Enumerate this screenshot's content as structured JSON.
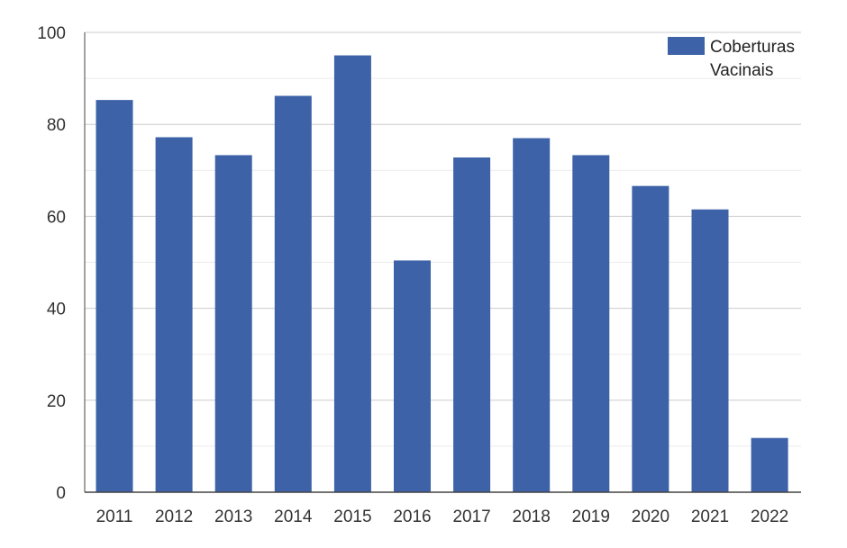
{
  "chart_data": {
    "type": "bar",
    "categories": [
      "2011",
      "2012",
      "2013",
      "2014",
      "2015",
      "2016",
      "2017",
      "2018",
      "2019",
      "2020",
      "2021",
      "2022"
    ],
    "series": [
      {
        "name": "Coberturas Vacinais",
        "values": [
          85.3,
          77.2,
          73.3,
          86.2,
          95.0,
          50.4,
          72.8,
          77.0,
          73.3,
          66.6,
          61.5,
          11.8
        ]
      }
    ],
    "title": "",
    "xlabel": "",
    "ylabel": "",
    "ylim": [
      0,
      100
    ],
    "yticks": [
      0,
      20,
      40,
      60,
      80,
      100
    ],
    "grid": true,
    "legend": {
      "position": "top-right",
      "lines": [
        "Coberturas",
        "Vacinais"
      ]
    },
    "colors": {
      "bar": "#3d62a8",
      "grid_major": "#cccccc",
      "grid_minor": "#ebebeb",
      "axis": "#444444"
    }
  }
}
